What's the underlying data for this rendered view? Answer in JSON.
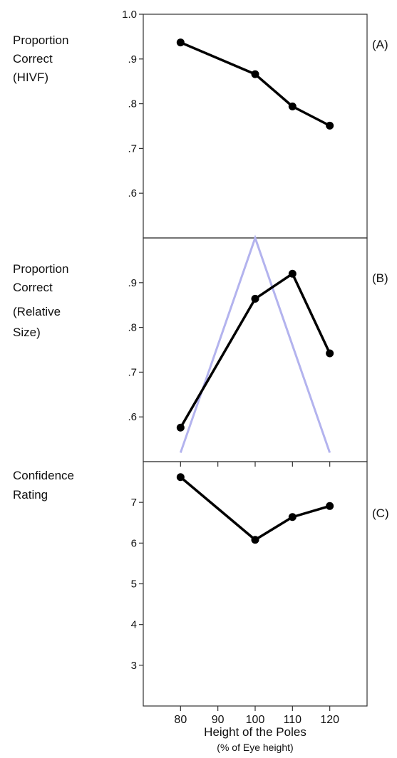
{
  "chart_data": [
    {
      "type": "line",
      "panel_tag": "(A)",
      "ylabel": [
        "Proportion",
        "Correct",
        "(HIVF)"
      ],
      "y_ticks": [
        "1.0",
        ".9",
        ".8",
        ".7",
        ".6"
      ],
      "y_tick_values": [
        1.0,
        0.9,
        0.8,
        0.7,
        0.6
      ],
      "ylim": [
        0.5,
        1.0
      ],
      "x": [
        80,
        100,
        110,
        120
      ],
      "series": [
        {
          "values": [
            0.937,
            0.866,
            0.794,
            0.751
          ],
          "color": "#000000"
        }
      ]
    },
    {
      "type": "line",
      "panel_tag": "(B)",
      "ylabel": [
        "Proportion",
        "Correct",
        "(Relative",
        "Size)"
      ],
      "y_ticks": [
        ".9",
        ".8",
        ".7",
        ".6"
      ],
      "y_tick_values": [
        0.9,
        0.8,
        0.7,
        0.6
      ],
      "ylim": [
        0.5,
        1.0
      ],
      "x": [
        80,
        100,
        110,
        120
      ],
      "series": [
        {
          "values": [
            0.576,
            0.864,
            0.92,
            0.742
          ],
          "color": "#000000"
        }
      ],
      "overlay": {
        "x": [
          80,
          100,
          120
        ],
        "y": [
          0.52,
          1.0,
          0.52
        ],
        "color": "#b3b3ee"
      }
    },
    {
      "type": "line",
      "panel_tag": "(C)",
      "ylabel": [
        "Confidence",
        "Rating"
      ],
      "y_ticks": [
        "7",
        "6",
        "5",
        "4",
        "3"
      ],
      "y_tick_values": [
        7,
        6,
        5,
        4,
        3
      ],
      "ylim": [
        2,
        8
      ],
      "x": [
        80,
        100,
        110,
        120
      ],
      "series": [
        {
          "values": [
            7.62,
            6.08,
            6.64,
            6.91
          ],
          "color": "#000000"
        }
      ]
    }
  ],
  "x_axis": {
    "tick_labels": [
      "80",
      "90",
      "100",
      "110",
      "120"
    ],
    "tick_values": [
      80,
      90,
      100,
      110,
      120
    ],
    "xlim": [
      70,
      130
    ],
    "title": "Height of the Poles",
    "subtitle": "(% of Eye height)"
  }
}
